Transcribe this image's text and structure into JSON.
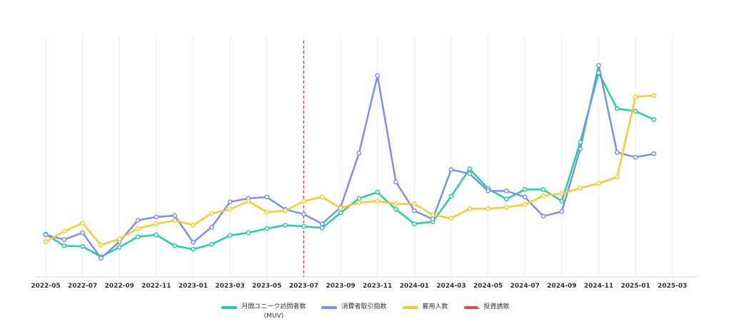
{
  "chart_data": {
    "type": "line",
    "x": [
      "2022-05",
      "2022-06",
      "2022-07",
      "2022-08",
      "2022-09",
      "2022-10",
      "2022-11",
      "2022-12",
      "2023-01",
      "2023-02",
      "2023-03",
      "2023-04",
      "2023-05",
      "2023-06",
      "2023-07",
      "2023-08",
      "2023-09",
      "2023-10",
      "2023-11",
      "2023-12",
      "2024-01",
      "2024-02",
      "2024-03",
      "2024-04",
      "2024-05",
      "2024-06",
      "2024-07",
      "2024-08",
      "2024-09",
      "2024-10",
      "2024-11",
      "2024-12",
      "2025-01",
      "2025-02"
    ],
    "x_ticks": [
      "2022-05",
      "2022-07",
      "2022-09",
      "2022-11",
      "2023-01",
      "2023-03",
      "2023-05",
      "2023-07",
      "2023-09",
      "2023-11",
      "2024-01",
      "2024-03",
      "2024-05",
      "2024-07",
      "2024-09",
      "2024-11",
      "2025-01",
      "2025-03"
    ],
    "ylim": [
      0,
      310
    ],
    "series": [
      {
        "name": "月間ユニーク訪問者数 (MUV)",
        "label_lines": [
          "月間ユニーク訪問者数",
          "(MUV)"
        ],
        "color": "#1fd1a1",
        "values": [
          52,
          35,
          34,
          19,
          33,
          48,
          51,
          35,
          30,
          37,
          50,
          54,
          60,
          65,
          63,
          61,
          83,
          104,
          113,
          88,
          67,
          70,
          107,
          147,
          118,
          103,
          117,
          117,
          100,
          186,
          287,
          235,
          231,
          219
        ]
      },
      {
        "name": "消費者取引指数",
        "label_lines": [
          "消費者取引指数"
        ],
        "color": "#7c8ff0",
        "values": [
          51,
          44,
          54,
          17,
          41,
          72,
          77,
          79,
          40,
          62,
          99,
          104,
          106,
          88,
          81,
          67,
          91,
          170,
          283,
          128,
          86,
          74,
          146,
          140,
          115,
          115,
          106,
          78,
          85,
          176,
          298,
          171,
          164,
          169
        ]
      },
      {
        "name": "雇用人数",
        "label_lines": [
          "雇用人数"
        ],
        "color": "#f7cc2a",
        "values": [
          41,
          56,
          68,
          36,
          45,
          60,
          67,
          72,
          65,
          82,
          88,
          100,
          84,
          86,
          100,
          106,
          90,
          98,
          100,
          96,
          96,
          80,
          75,
          89,
          89,
          91,
          95,
          108,
          111,
          119,
          126,
          135,
          252,
          254
        ]
      }
    ],
    "annotation": {
      "name": "投資誘致",
      "x": "2023-07",
      "color": "#e74c3c",
      "style": "dashed"
    },
    "grid": {
      "vertical": true,
      "horizontal": false
    },
    "legend_position": "bottom"
  }
}
